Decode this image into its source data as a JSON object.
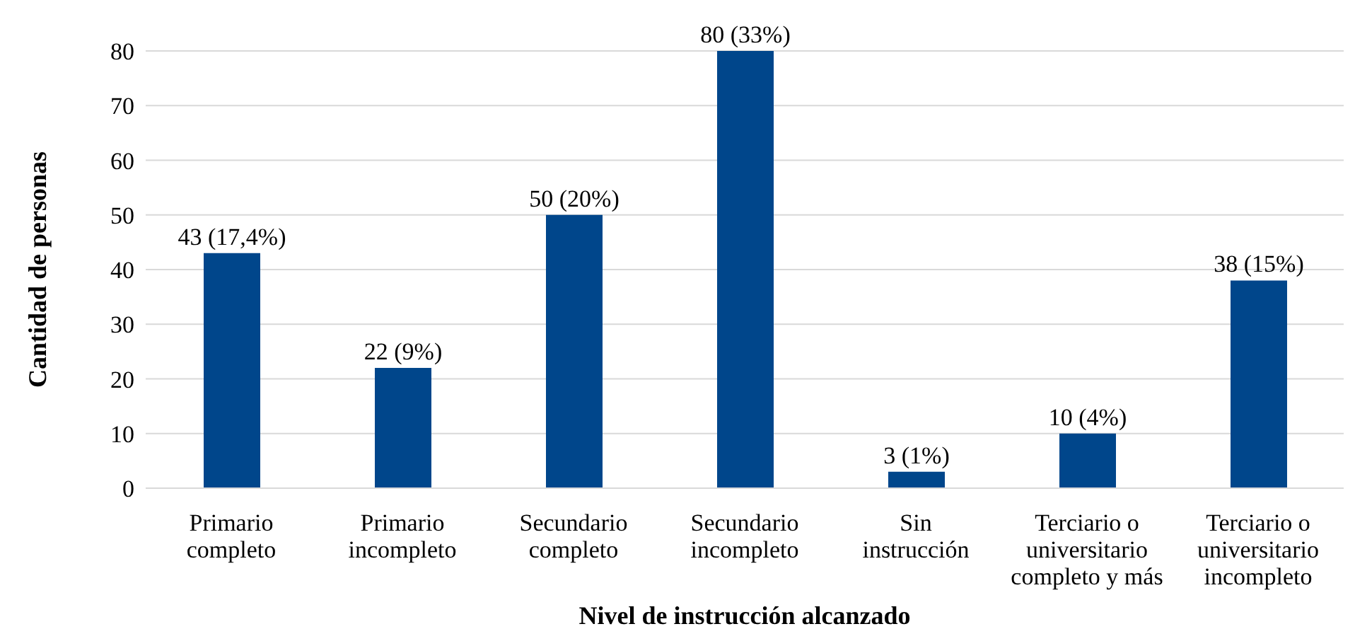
{
  "chart_data": {
    "type": "bar",
    "xlabel": "Nivel de instrucción alcanzado",
    "ylabel": "Cantidad de personas",
    "categories": [
      "Primario completo",
      "Primario incompleto",
      "Secundario completo",
      "Secundario incompleto",
      "Sin instrucción",
      "Terciario o universitario completo y más",
      "Terciario o universitario incompleto"
    ],
    "values": [
      43,
      22,
      50,
      80,
      3,
      10,
      38
    ],
    "value_labels": [
      "43 (17,4%)",
      "22 (9%)",
      "50 (20%)",
      "80 (33%)",
      "3 (1%)",
      "10 (4%)",
      "38 (15%)"
    ],
    "color": "#00468b",
    "ylim": [
      0,
      80
    ],
    "yticks": [
      0,
      10,
      20,
      30,
      40,
      50,
      60,
      70,
      80
    ],
    "grid": "y"
  }
}
